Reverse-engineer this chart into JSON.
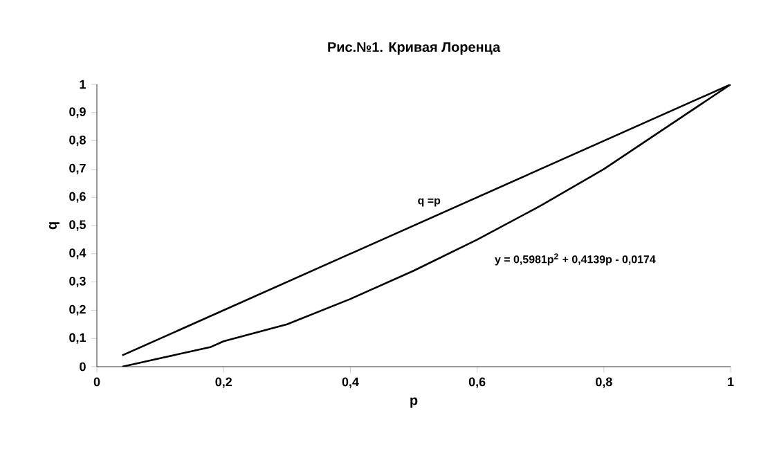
{
  "chart_data": {
    "type": "line",
    "title": "Рис.№1. Кривая Лоренца",
    "xlabel": "p",
    "ylabel": "q",
    "series": [
      {
        "x": [
          0.04,
          1
        ],
        "values": [
          0.04,
          1
        ],
        "color": "#000000"
      },
      {
        "x": [
          0.04,
          0.1,
          0.18,
          0.2,
          0.3,
          0.4,
          0.5,
          0.6,
          0.7,
          0.8,
          0.9,
          1
        ],
        "values": [
          0,
          0.03,
          0.07,
          0.09,
          0.15,
          0.24,
          0.34,
          0.45,
          0.57,
          0.7,
          0.85,
          1
        ],
        "color": "#000000"
      }
    ],
    "annotations": [
      {
        "text": "q =p",
        "x": 0.55,
        "y": 0.55
      },
      "y = 0,5981p$^{2}$ + 0,4139p - 0,0174"
    ],
    "xlim": [
      0,
      1
    ],
    "ylim": [
      0,
      1
    ],
    "xticks": [
      0,
      {
        "value": 0.2,
        "label": "0,2"
      },
      {
        "value": 0.4,
        "label": "0,4"
      },
      {
        "value": 0.6,
        "label": "0,6"
      },
      {
        "value": 0.8,
        "label": "0,8"
      },
      1
    ],
    "yticks": [
      0,
      {
        "value": 0.1,
        "label": "0,1"
      },
      {
        "value": 0.2,
        "label": "0,2"
      },
      {
        "value": 0.3,
        "label": "0,3"
      },
      {
        "value": 0.4,
        "label": "0,4"
      },
      {
        "value": 0.5,
        "label": "0,5"
      },
      {
        "value": 0.6,
        "label": "0,6"
      },
      {
        "value": 0.7,
        "label": "0,7"
      },
      {
        "value": 0.8,
        "label": "0,8"
      },
      {
        "value": 0.9,
        "label": "0,9"
      },
      1
    ],
    "grid": false,
    "marker": "none",
    "line_style": "solid"
  }
}
